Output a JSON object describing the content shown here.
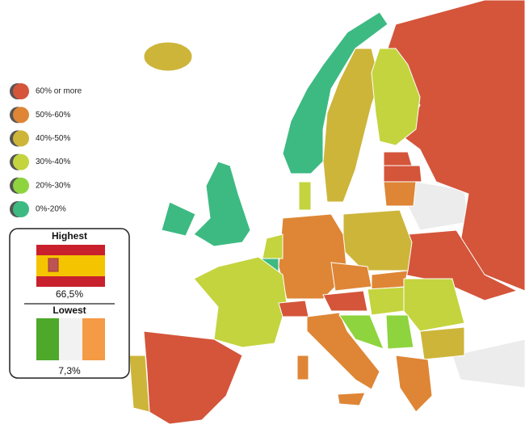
{
  "legend": {
    "items": [
      {
        "label": "60% or more",
        "color": "#d4553a"
      },
      {
        "label": "50%-60%",
        "color": "#de8636"
      },
      {
        "label": "40%-50%",
        "color": "#cdb53a"
      },
      {
        "label": "30%-40%",
        "color": "#c3d43e"
      },
      {
        "label": "20%-30%",
        "color": "#8ed43e"
      },
      {
        "label": "0%-20%",
        "color": "#3dba82"
      }
    ]
  },
  "highest": {
    "title": "Highest",
    "value": "66,5%"
  },
  "lowest": {
    "title": "Lowest",
    "value": "7,3%"
  }
}
